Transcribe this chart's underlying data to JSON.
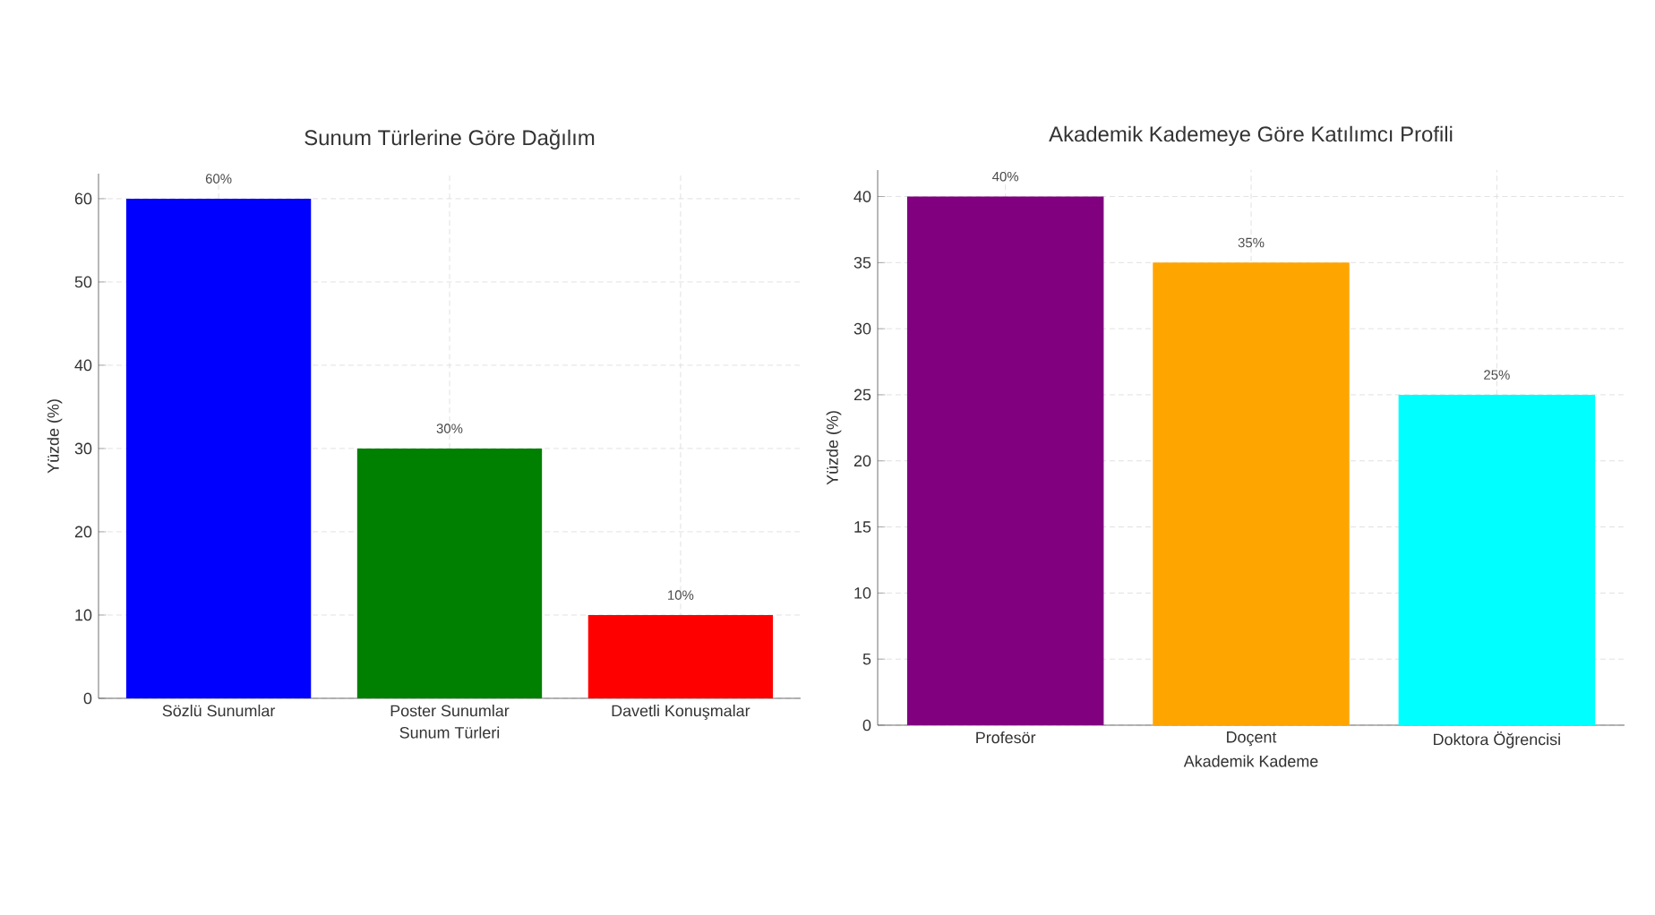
{
  "chart_data": [
    {
      "type": "bar",
      "title": "Sunum Türlerine Göre Dağılım",
      "xlabel": "Sunum Türleri",
      "ylabel": "Yüzde (%)",
      "categories": [
        "Sözlü Sunumlar",
        "Poster Sunumlar",
        "Davetli Konuşmalar"
      ],
      "values": [
        60,
        30,
        10
      ],
      "colors": [
        "#0000ff",
        "#008000",
        "#ff0000"
      ],
      "value_labels": [
        "60%",
        "30%",
        "10%"
      ],
      "ylim": [
        0,
        63
      ],
      "yticks": [
        0,
        10,
        20,
        30,
        40,
        50,
        60
      ],
      "grid": true
    },
    {
      "type": "bar",
      "title": "Akademik Kademeye Göre Katılımcı Profili",
      "xlabel": "Akademik Kademe",
      "ylabel": "Yüzde (%)",
      "categories": [
        "Profesör",
        "Doçent",
        "Doktora Öğrencisi"
      ],
      "values": [
        40,
        35,
        25
      ],
      "colors": [
        "#800080",
        "#ffa500",
        "#00ffff"
      ],
      "value_labels": [
        "40%",
        "35%",
        "25%"
      ],
      "ylim": [
        0,
        42
      ],
      "yticks": [
        0,
        5,
        10,
        15,
        20,
        25,
        30,
        35,
        40
      ],
      "grid": true
    }
  ]
}
